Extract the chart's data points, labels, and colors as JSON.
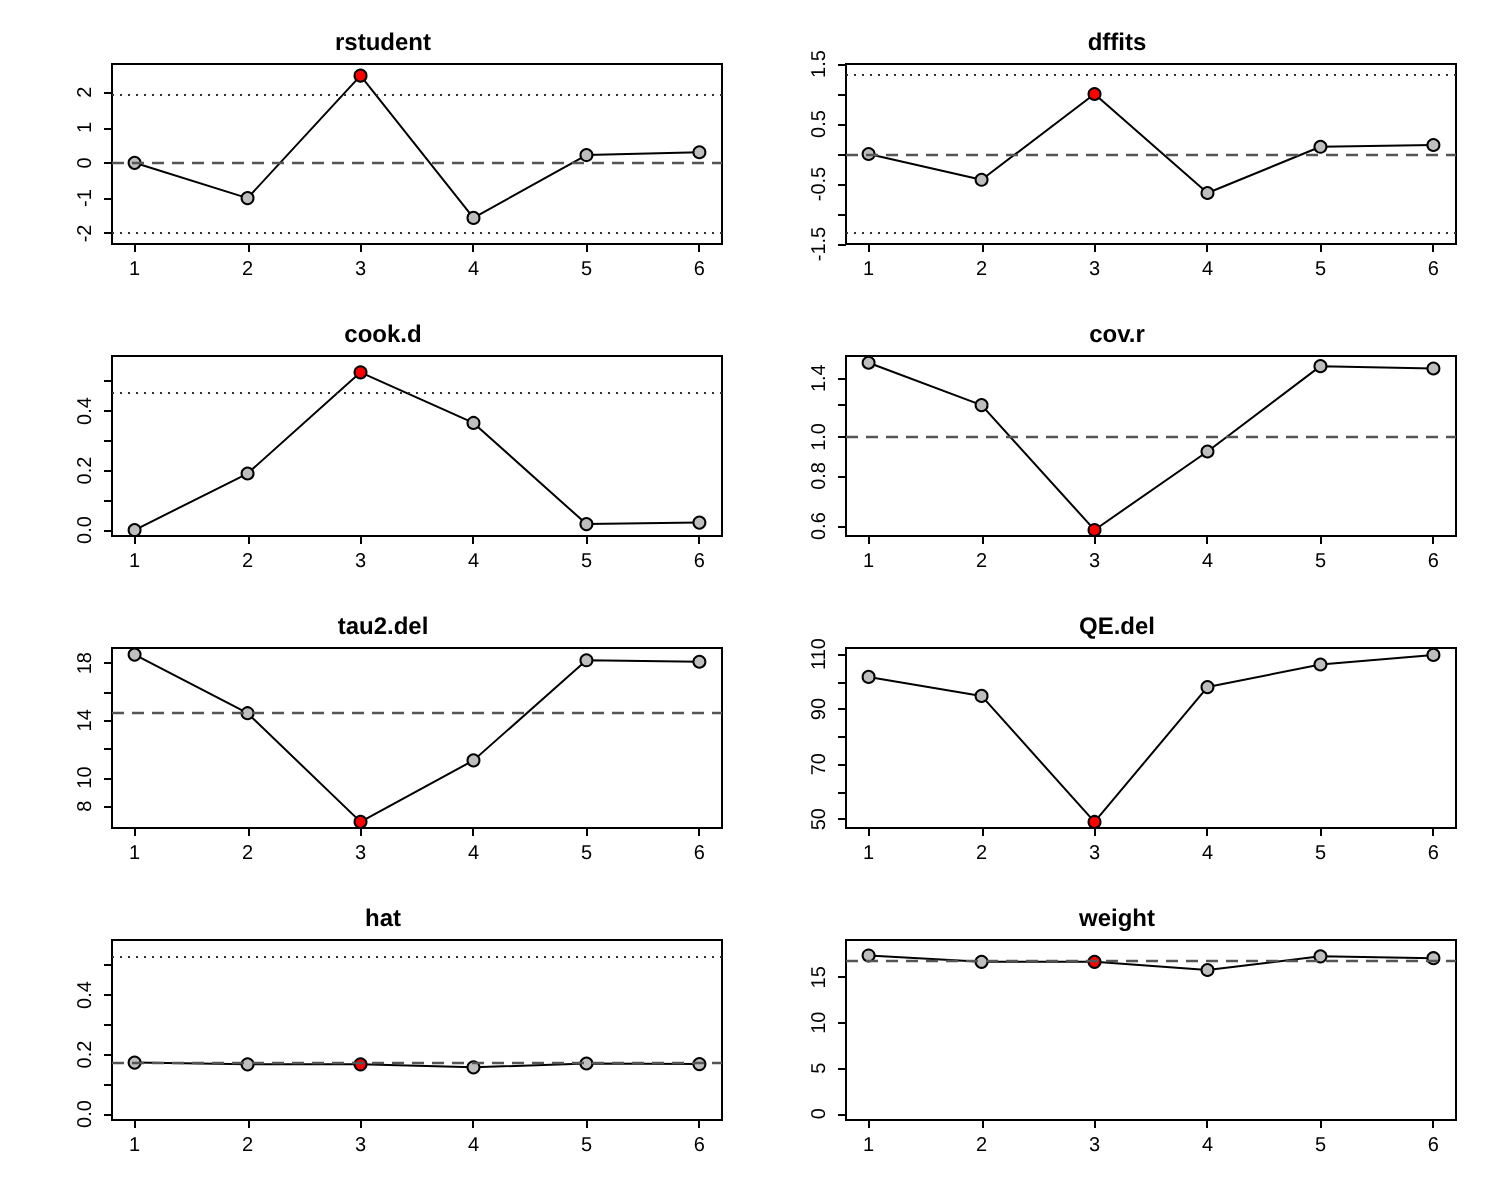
{
  "chart_data": [
    {
      "type": "line",
      "title": "rstudent",
      "x": [
        1,
        2,
        3,
        4,
        5,
        6
      ],
      "xlim": [
        0.8,
        6.2
      ],
      "xticks": [
        1,
        2,
        3,
        4,
        5,
        6
      ],
      "ylim": [
        -2.3,
        2.8
      ],
      "yticks": [
        -2,
        -1,
        0,
        1,
        2
      ],
      "marker": "circle",
      "grid": false,
      "series": [
        {
          "color": "#000000",
          "values": [
            0.0,
            -1.0,
            2.47,
            -1.56,
            0.22,
            0.3
          ],
          "colors": [
            "#bebebe",
            "#bebebe",
            "#ff0000",
            "#bebebe",
            "#bebebe",
            "#bebebe"
          ]
        }
      ],
      "ref_lines": [
        {
          "axis": "y",
          "value": 1.96,
          "line_style": "dotted"
        },
        {
          "axis": "y",
          "value": 0,
          "line_style": "dashed"
        },
        {
          "axis": "y",
          "value": -1.96,
          "line_style": "dotted"
        }
      ]
    },
    {
      "type": "line",
      "title": "dffits",
      "x": [
        1,
        2,
        3,
        4,
        5,
        6
      ],
      "xlim": [
        0.8,
        6.2
      ],
      "xticks": [
        1,
        2,
        3,
        4,
        5,
        6
      ],
      "ylim": [
        -1.5,
        1.5
      ],
      "yticks": [
        -1.5,
        {
          "value": -1,
          "label": null
        },
        -0.5,
        {
          "value": 0,
          "label": null
        },
        0.5,
        {
          "value": 1,
          "label": null
        },
        1.5
      ],
      "marker": "circle",
      "grid": false,
      "series": [
        {
          "color": "#000000",
          "values": [
            0.0,
            -0.43,
            1.0,
            -0.65,
            0.12,
            0.15
          ],
          "colors": [
            "#bebebe",
            "#bebebe",
            "#ff0000",
            "#bebebe",
            "#bebebe",
            "#bebebe"
          ]
        }
      ],
      "ref_lines": [
        {
          "axis": "y",
          "value": 1.31,
          "line_style": "dotted"
        },
        {
          "axis": "y",
          "value": 0,
          "line_style": "dashed"
        },
        {
          "axis": "y",
          "value": -1.31,
          "line_style": "dotted"
        }
      ]
    },
    {
      "type": "line",
      "title": "cook.d",
      "x": [
        1,
        2,
        3,
        4,
        5,
        6
      ],
      "xlim": [
        0.8,
        6.2
      ],
      "xticks": [
        1,
        2,
        3,
        4,
        5,
        6
      ],
      "ylim": [
        -0.02,
        0.585
      ],
      "yticks": [
        {
          "value": 0,
          "label": "0.0"
        },
        {
          "value": 0.1,
          "label": null
        },
        0.2,
        {
          "value": 0.3,
          "label": null
        },
        0.4,
        {
          "value": 0.5,
          "label": null
        }
      ],
      "marker": "circle",
      "grid": false,
      "series": [
        {
          "color": "#000000",
          "values": [
            0.0,
            0.19,
            0.53,
            0.36,
            0.02,
            0.025
          ],
          "colors": [
            "#bebebe",
            "#bebebe",
            "#ff0000",
            "#bebebe",
            "#bebebe",
            "#bebebe"
          ]
        }
      ],
      "ref_lines": [
        {
          "axis": "y",
          "value": 0.46,
          "line_style": "dotted"
        }
      ]
    },
    {
      "type": "line",
      "title": "cov.r",
      "log": "y",
      "x": [
        1,
        2,
        3,
        4,
        5,
        6
      ],
      "xlim": [
        0.8,
        6.2
      ],
      "xticks": [
        1,
        2,
        3,
        4,
        5,
        6
      ],
      "ylim": [
        0.567,
        1.59
      ],
      "yticks": [
        0.6,
        0.8,
        {
          "value": 1,
          "label": "1.0"
        },
        {
          "value": 1.2,
          "label": null
        },
        1.4
      ],
      "marker": "circle",
      "grid": false,
      "series": [
        {
          "color": "#000000",
          "values": [
            1.53,
            1.2,
            0.587,
            0.92,
            1.5,
            1.48
          ],
          "colors": [
            "#bebebe",
            "#bebebe",
            "#ff0000",
            "#bebebe",
            "#bebebe",
            "#bebebe"
          ]
        }
      ],
      "ref_lines": [
        {
          "axis": "y",
          "value": 1,
          "line_style": "dashed"
        }
      ]
    },
    {
      "type": "line",
      "title": "tau2.del",
      "x": [
        1,
        2,
        3,
        4,
        5,
        6
      ],
      "xlim": [
        0.8,
        6.2
      ],
      "xticks": [
        1,
        2,
        3,
        4,
        5,
        6
      ],
      "ylim": [
        6.47,
        19.06
      ],
      "yticks": [
        8,
        10,
        {
          "value": 12,
          "label": null
        },
        14,
        {
          "value": 16,
          "label": null
        },
        18
      ],
      "marker": "circle",
      "grid": false,
      "series": [
        {
          "color": "#000000",
          "values": [
            18.6,
            14.5,
            6.9,
            11.2,
            18.2,
            18.1
          ],
          "colors": [
            "#bebebe",
            "#bebebe",
            "#ff0000",
            "#bebebe",
            "#bebebe",
            "#bebebe"
          ]
        }
      ],
      "ref_lines": [
        {
          "axis": "y",
          "value": 14.5,
          "line_style": "dashed"
        }
      ]
    },
    {
      "type": "line",
      "title": "QE.del",
      "x": [
        1,
        2,
        3,
        4,
        5,
        6
      ],
      "xlim": [
        0.8,
        6.2
      ],
      "xticks": [
        1,
        2,
        3,
        4,
        5,
        6
      ],
      "ylim": [
        46.8,
        112.2
      ],
      "yticks": [
        50,
        {
          "value": 60,
          "label": null
        },
        70,
        {
          "value": 80,
          "label": null
        },
        90,
        {
          "value": 100,
          "label": null
        },
        110
      ],
      "marker": "circle",
      "grid": false,
      "series": [
        {
          "color": "#000000",
          "values": [
            101.7,
            94.8,
            49.0,
            98.0,
            106.2,
            109.7
          ],
          "colors": [
            "#bebebe",
            "#bebebe",
            "#ff0000",
            "#bebebe",
            "#bebebe",
            "#bebebe"
          ]
        }
      ]
    },
    {
      "type": "line",
      "title": "hat",
      "x": [
        1,
        2,
        3,
        4,
        5,
        6
      ],
      "xlim": [
        0.8,
        6.2
      ],
      "xticks": [
        1,
        2,
        3,
        4,
        5,
        6
      ],
      "ylim": [
        -0.02,
        0.585
      ],
      "yticks": [
        {
          "value": 0,
          "label": "0.0"
        },
        {
          "value": 0.1,
          "label": null
        },
        0.2,
        {
          "value": 0.3,
          "label": null
        },
        0.4,
        {
          "value": 0.5,
          "label": null
        }
      ],
      "marker": "circle",
      "grid": false,
      "series": [
        {
          "color": "#000000",
          "values": [
            0.173,
            0.167,
            0.167,
            0.157,
            0.17,
            0.168
          ],
          "colors": [
            "#bebebe",
            "#bebebe",
            "#ff0000",
            "#bebebe",
            "#bebebe",
            "#bebebe"
          ]
        }
      ],
      "ref_lines": [
        {
          "axis": "y",
          "value": 0.53,
          "line_style": "dotted"
        },
        {
          "axis": "y",
          "value": 0.167,
          "line_style": "dashed"
        }
      ]
    },
    {
      "type": "line",
      "title": "weight",
      "x": [
        1,
        2,
        3,
        4,
        5,
        6
      ],
      "xlim": [
        0.8,
        6.2
      ],
      "xticks": [
        1,
        2,
        3,
        4,
        5,
        6
      ],
      "ylim": [
        -0.7,
        19.1
      ],
      "yticks": [
        0,
        5,
        10,
        15
      ],
      "marker": "circle",
      "grid": false,
      "series": [
        {
          "color": "#000000",
          "values": [
            17.4,
            16.7,
            16.7,
            15.8,
            17.3,
            17.1
          ],
          "colors": [
            "#bebebe",
            "#bebebe",
            "#ff0000",
            "#bebebe",
            "#bebebe",
            "#bebebe"
          ]
        }
      ],
      "ref_lines": [
        {
          "axis": "y",
          "value": 16.8,
          "line_style": "dashed"
        }
      ]
    }
  ]
}
